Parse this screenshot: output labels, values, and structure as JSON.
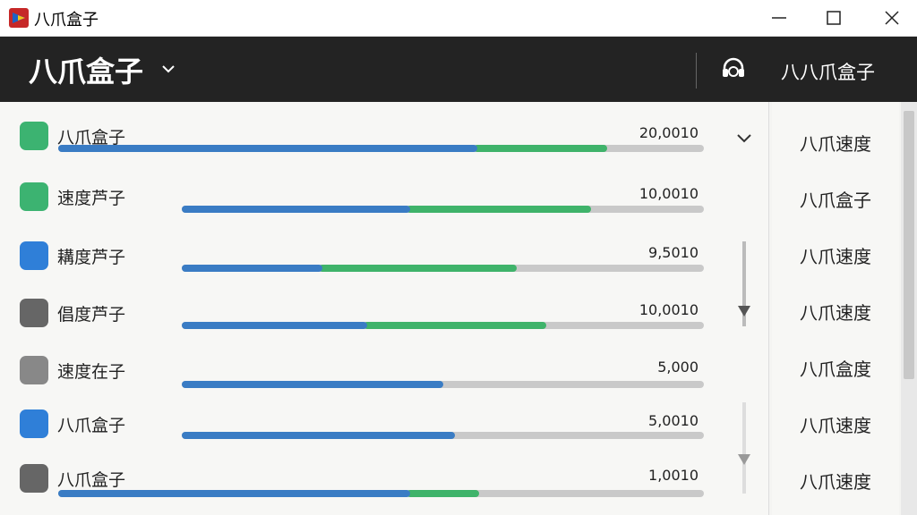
{
  "window": {
    "title": "八爪盒子"
  },
  "header": {
    "title": "八爪盒子",
    "account": "八八爪盒子"
  },
  "list": {
    "rows": [
      {
        "name": "八爪盒子",
        "value": "20,0010"
      },
      {
        "name": "速度芦子",
        "value": "10,0010"
      },
      {
        "name": "耩度芦子",
        "value": "9,5010"
      },
      {
        "name": "倡度芦子",
        "value": "10,0010"
      },
      {
        "name": "速度在子",
        "value": "5,000"
      },
      {
        "name": "八爪盒子",
        "value": "5,0010"
      },
      {
        "name": "八爪盒子",
        "value": "1,0010"
      }
    ]
  },
  "sidebar": {
    "items": [
      "八爪速度",
      "八爪盒子",
      "八爪速度",
      "八爪速度",
      "八爪盒度",
      "八爪速度",
      "八爪速度"
    ]
  }
}
